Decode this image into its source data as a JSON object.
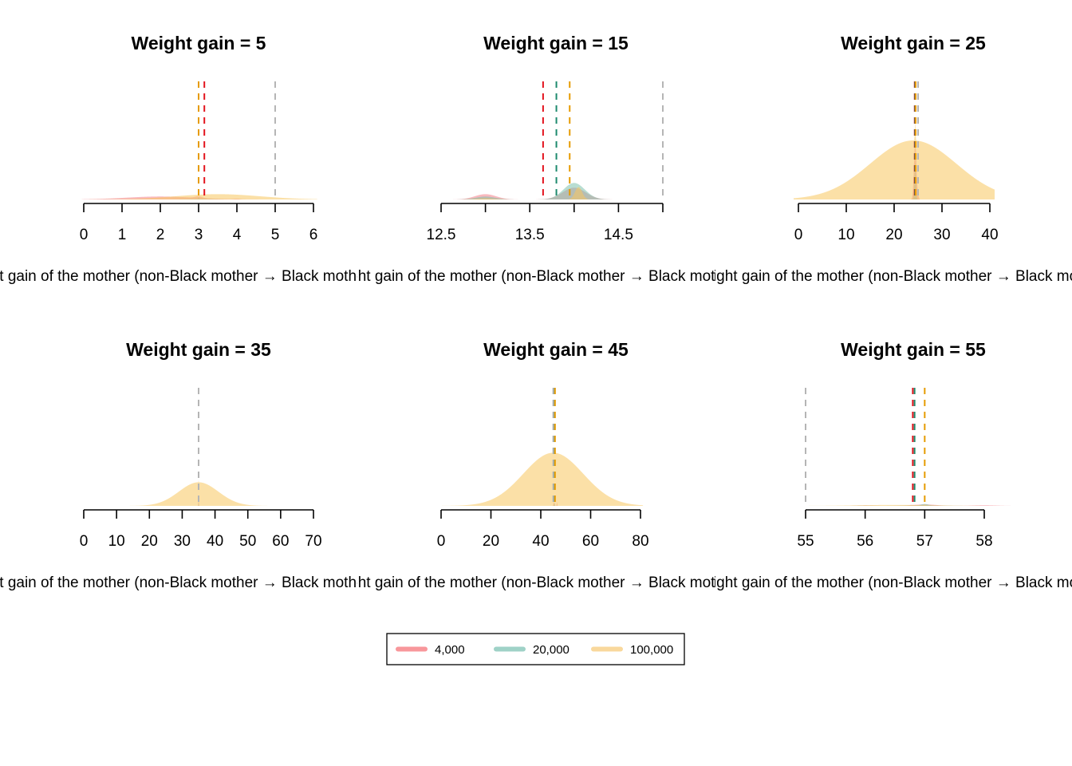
{
  "chart_data": [
    {
      "type": "area",
      "title": "Weight gain = 5",
      "xlabel": "Weight gain of the mother (non-Black mother → Black mother)",
      "xlim": [
        0,
        6
      ],
      "ticks": [
        0,
        1,
        2,
        3,
        4,
        5,
        6
      ],
      "tick_labels": [
        "0",
        "1",
        "2",
        "3",
        "4",
        "5",
        "6"
      ],
      "view": [
        -0.05,
        6.1
      ],
      "ymax": 1.0,
      "vlines": [
        {
          "series": "4,000",
          "x": 3.15
        },
        {
          "series": "20,000",
          "x": 3.0
        },
        {
          "series": "100,000",
          "x": 3.0
        },
        {
          "series": "reference",
          "x": 5.0
        }
      ],
      "series": [
        {
          "name": "4,000",
          "components": [
            {
              "mu": 3.0,
              "sd": 0.09,
              "w": 0.013
            },
            {
              "mu": 4.0,
              "sd": 0.08,
              "w": 0.005
            },
            {
              "mu": 2.0,
              "sd": 0.9,
              "w": 0.025
            }
          ]
        },
        {
          "name": "20,000",
          "components": [
            {
              "mu": 3.0,
              "sd": 0.012,
              "w": 0.014
            },
            {
              "mu": 3.0,
              "sd": 0.3,
              "w": 0.005
            }
          ]
        },
        {
          "name": "100,000",
          "components": [
            {
              "mu": 3.0,
              "sd": 0.004,
              "w": 0.01
            },
            {
              "mu": 3.5,
              "sd": 1.1,
              "w": 0.045
            }
          ]
        }
      ]
    },
    {
      "type": "area",
      "title": "Weight gain = 15",
      "xlabel": "Weight gain of the mother (non-Black mother → Black mother)",
      "xlim": [
        12.5,
        15
      ],
      "ticks": [
        12.5,
        13.0,
        13.5,
        14.0,
        14.5,
        15.0
      ],
      "tick_labels": [
        "12.5",
        "",
        "13.5",
        "",
        "14.5",
        ""
      ],
      "view": [
        12.05,
        15.0
      ],
      "ymax": 1.0,
      "vlines": [
        {
          "series": "4,000",
          "x": 13.65
        },
        {
          "series": "20,000",
          "x": 13.8
        },
        {
          "series": "100,000",
          "x": 13.95
        },
        {
          "series": "reference",
          "x": 15.0
        }
      ],
      "series": [
        {
          "name": "4,000",
          "components": [
            {
              "mu": 13.0,
              "sd": 0.12,
              "w": 0.045
            },
            {
              "mu": 14.0,
              "sd": 0.13,
              "w": 0.1
            }
          ]
        },
        {
          "name": "20,000",
          "components": [
            {
              "mu": 13.0,
              "sd": 0.11,
              "w": 0.025
            },
            {
              "mu": 14.0,
              "sd": 0.12,
              "w": 0.14
            }
          ]
        },
        {
          "name": "100,000",
          "components": [
            {
              "mu": 13.0,
              "sd": 0.1,
              "w": 0.01
            },
            {
              "mu": 14.05,
              "sd": 0.04,
              "w": 0.105
            }
          ]
        }
      ]
    },
    {
      "type": "area",
      "title": "Weight gain = 25",
      "xlabel": "Weight gain of the mother (non-Black mother → Black mother)",
      "xlim": [
        0,
        40
      ],
      "ticks": [
        0,
        10,
        20,
        30,
        40
      ],
      "tick_labels": [
        "0",
        "10",
        "20",
        "30",
        "40"
      ],
      "view": [
        -1.0,
        41.0
      ],
      "ymax": 1.0,
      "vlines": [
        {
          "series": "4,000",
          "x": 24.3
        },
        {
          "series": "20,000",
          "x": 24.4
        },
        {
          "series": "100,000",
          "x": 24.5
        },
        {
          "series": "reference",
          "x": 25.0
        }
      ],
      "series": [
        {
          "name": "4,000",
          "components": [
            {
              "mu": 24.4,
              "sd": 0.25,
              "w": 0.5
            },
            {
              "mu": 25.0,
              "sd": 0.15,
              "w": 0.03
            }
          ]
        },
        {
          "name": "20,000",
          "components": [
            {
              "mu": 24.4,
              "sd": 0.15,
              "w": 0.31
            }
          ]
        },
        {
          "name": "100,000",
          "components": [
            {
              "mu": 24.4,
              "sd": 0.08,
              "w": 0.15
            },
            {
              "mu": 24.0,
              "sd": 9.0,
              "w": 0.5
            }
          ]
        }
      ]
    },
    {
      "type": "area",
      "title": "Weight gain = 35",
      "xlabel": "Weight gain of the mother (non-Black mother → Black mother)",
      "xlim": [
        0,
        70
      ],
      "ticks": [
        0,
        10,
        20,
        30,
        40,
        50,
        60,
        70
      ],
      "tick_labels": [
        "0",
        "10",
        "20",
        "30",
        "40",
        "50",
        "60",
        "70"
      ],
      "view": [
        -0.2,
        70.5
      ],
      "ymax": 1.0,
      "vlines": [
        {
          "series": "4,000",
          "x": 35.0
        },
        {
          "series": "20,000",
          "x": 35.0
        },
        {
          "series": "100,000",
          "x": 35.0
        },
        {
          "series": "reference",
          "x": 35.0
        }
      ],
      "series": [
        {
          "name": "4,000",
          "components": [
            {
              "mu": 35.0,
              "sd": 0.08,
              "w": 0.06
            }
          ]
        },
        {
          "name": "20,000",
          "components": [
            {
              "mu": 35.0,
              "sd": 0.05,
              "w": 0.04
            }
          ]
        },
        {
          "name": "100,000",
          "components": [
            {
              "mu": 35.0,
              "sd": 0.03,
              "w": 0.02
            },
            {
              "mu": 35.0,
              "sd": 6.0,
              "w": 0.2
            }
          ]
        }
      ]
    },
    {
      "type": "area",
      "title": "Weight gain = 45",
      "xlabel": "Weight gain of the mother (non-Black mother → Black mother)",
      "xlim": [
        0,
        80
      ],
      "ticks": [
        0,
        20,
        40,
        60,
        80
      ],
      "tick_labels": [
        "0",
        "20",
        "40",
        "60",
        "80"
      ],
      "view": [
        -1.0,
        81.0
      ],
      "ymax": 1.0,
      "vlines": [
        {
          "series": "4,000",
          "x": 45.6
        },
        {
          "series": "20,000",
          "x": 45.4
        },
        {
          "series": "100,000",
          "x": 45.7
        },
        {
          "series": "reference",
          "x": 45.0
        }
      ],
      "series": [
        {
          "name": "4,000",
          "components": [
            {
              "mu": 46.5,
              "sd": 0.12,
              "w": 0.03
            },
            {
              "mu": 45.3,
              "sd": 0.2,
              "w": 0.03
            }
          ]
        },
        {
          "name": "20,000",
          "components": [
            {
              "mu": 45.5,
              "sd": 0.15,
              "w": 0.025
            }
          ]
        },
        {
          "name": "100,000",
          "components": [
            {
              "mu": 45.6,
              "sd": 0.06,
              "w": 0.01
            },
            {
              "mu": 45.0,
              "sd": 12.0,
              "w": 0.45
            }
          ]
        }
      ]
    },
    {
      "type": "area",
      "title": "Weight gain = 55",
      "xlabel": "Weight gain of the mother (non-Black mother → Black mother)",
      "xlim": [
        55,
        58
      ],
      "ticks": [
        55,
        56,
        57,
        58
      ],
      "tick_labels": [
        "55",
        "56",
        "57",
        "58"
      ],
      "view": [
        54.9,
        58.6
      ],
      "ymax": 1.0,
      "vlines": [
        {
          "series": "4,000",
          "x": 56.8
        },
        {
          "series": "20,000",
          "x": 56.83
        },
        {
          "series": "100,000",
          "x": 57.0
        },
        {
          "series": "reference",
          "x": 55.0
        }
      ],
      "series": [
        {
          "name": "4,000",
          "components": [
            {
              "mu": 56.0,
              "sd": 0.12,
              "w": 0.004
            },
            {
              "mu": 57.0,
              "sd": 0.2,
              "w": 0.012
            },
            {
              "mu": 58.0,
              "sd": 0.2,
              "w": 0.005
            },
            {
              "mu": 56.78,
              "sd": 0.03,
              "w": 0.002
            }
          ]
        },
        {
          "name": "20,000",
          "components": [
            {
              "mu": 57.0,
              "sd": 0.06,
              "w": 0.012
            },
            {
              "mu": 56.0,
              "sd": 0.12,
              "w": 0.002
            },
            {
              "mu": 57.0,
              "sd": 0.3,
              "w": 0.004
            }
          ]
        },
        {
          "name": "100,000",
          "components": [
            {
              "mu": 57.0,
              "sd": 0.012,
              "w": 0.008
            },
            {
              "mu": 56.5,
              "sd": 0.6,
              "w": 0.008
            }
          ]
        }
      ]
    }
  ],
  "legend": {
    "position": "bottom-center",
    "items": [
      {
        "label": "4,000",
        "color": "#f8979b"
      },
      {
        "label": "20,000",
        "color": "#9fd2c7"
      },
      {
        "label": "100,000",
        "color": "#f9d89c"
      }
    ]
  },
  "colors": {
    "4,000": {
      "fill": "#f48088",
      "line": "#e3131d"
    },
    "20,000": {
      "fill": "#7dc1ad",
      "line": "#1e8a6e"
    },
    "100,000": {
      "fill": "#f7c75e",
      "line": "#e69b00"
    },
    "reference": {
      "line": "#b5b5b5"
    }
  }
}
